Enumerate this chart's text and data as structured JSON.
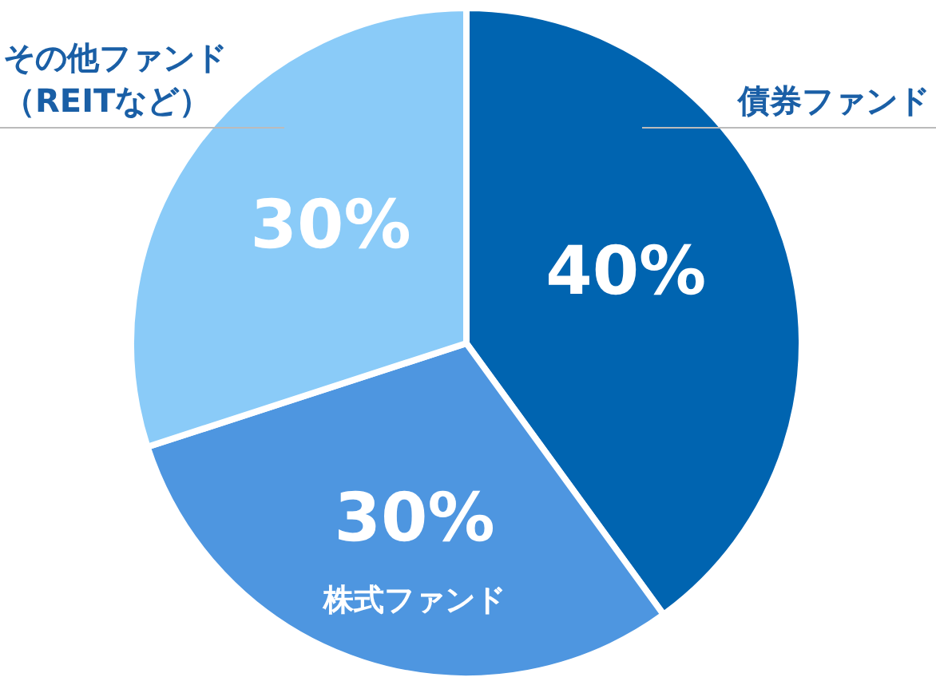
{
  "chart_data": {
    "type": "pie",
    "categories": [
      "債券ファンド",
      "株式ファンド",
      "その他ファンド（REITなど）"
    ],
    "values": [
      40,
      30,
      30
    ],
    "value_labels": [
      "40%",
      "30%",
      "30%"
    ],
    "colors": [
      "#0064b0",
      "#4e96e0",
      "#8acbf8"
    ]
  }
}
